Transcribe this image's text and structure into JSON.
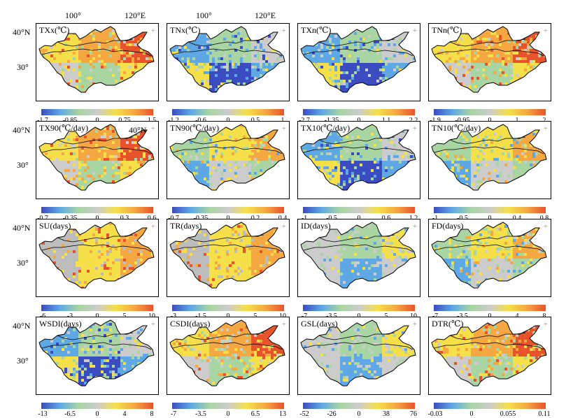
{
  "axes": {
    "top_lon": [
      "100°",
      "120°E",
      "100°",
      "120°E"
    ],
    "lat": [
      "40°N",
      "30°"
    ]
  },
  "colors": {
    "scale": [
      "#3b4cc0",
      "#5fa8e6",
      "#a8d5a2",
      "#cccccc",
      "#f5e04a",
      "#f5a742",
      "#e8532c"
    ],
    "boundary": "#000000",
    "grey_region": "#bdbdbd"
  },
  "panels": [
    {
      "title": "TXx(℃)",
      "ticks": [
        "-1.7",
        "-0.85",
        "0",
        "0.75",
        "1.5"
      ],
      "pattern": "warm"
    },
    {
      "title": "TNx(℃)",
      "ticks": [
        "-1.2",
        "-0.6",
        "0",
        "0.5",
        "1"
      ],
      "pattern": "cool"
    },
    {
      "title": "TXn(℃)",
      "ticks": [
        "-2.7",
        "-1.35",
        "0",
        "1.1",
        "2.2"
      ],
      "pattern": "cool"
    },
    {
      "title": "TNn(℃)",
      "ticks": [
        "-1.9",
        "-0.95",
        "0",
        "1",
        "2"
      ],
      "pattern": "warm"
    },
    {
      "title": "TX90(℃/day)",
      "ticks": [
        "-0.7",
        "-0.35",
        "0",
        "0.3",
        "0.6"
      ],
      "pattern": "warm"
    },
    {
      "title": "TN90(℃/day)",
      "ticks": [
        "-0.7",
        "-0.35",
        "0",
        "0.2",
        "0.4"
      ],
      "pattern": "mixed"
    },
    {
      "title": "TX10(℃/day)",
      "ticks": [
        "-1",
        "-0.5",
        "0",
        "0.6",
        "1.2"
      ],
      "pattern": "cool"
    },
    {
      "title": "TN10(℃/day)",
      "ticks": [
        "-1",
        "-0.5",
        "0",
        "0.4",
        "0.8"
      ],
      "pattern": "mixed"
    },
    {
      "title": "SU(days)",
      "ticks": [
        "-6",
        "-3",
        "0",
        "5",
        "10"
      ],
      "pattern": "grey-warm"
    },
    {
      "title": "TR(days)",
      "ticks": [
        "-3",
        "-1.5",
        "0",
        "5",
        "10"
      ],
      "pattern": "grey-warm"
    },
    {
      "title": "ID(days)",
      "ticks": [
        "-7",
        "-3.5",
        "0",
        "5",
        "10"
      ],
      "pattern": "grey"
    },
    {
      "title": "FD(days)",
      "ticks": [
        "-7",
        "-3.5",
        "0",
        "4",
        "8"
      ],
      "pattern": "mixed"
    },
    {
      "title": "WSDI(days)",
      "ticks": [
        "-13",
        "-6.5",
        "0",
        "4",
        "8"
      ],
      "pattern": "cool"
    },
    {
      "title": "CSDI(days)",
      "ticks": [
        "-7",
        "-3.5",
        "0",
        "6.5",
        "13"
      ],
      "pattern": "warm"
    },
    {
      "title": "GSL(days)",
      "ticks": [
        "-52",
        "-26",
        "0",
        "38",
        "76"
      ],
      "pattern": "grey"
    },
    {
      "title": "DTR(℃)",
      "ticks": [
        "-0.03",
        "0",
        "0.055",
        "0.11"
      ],
      "pattern": "warm"
    }
  ]
}
